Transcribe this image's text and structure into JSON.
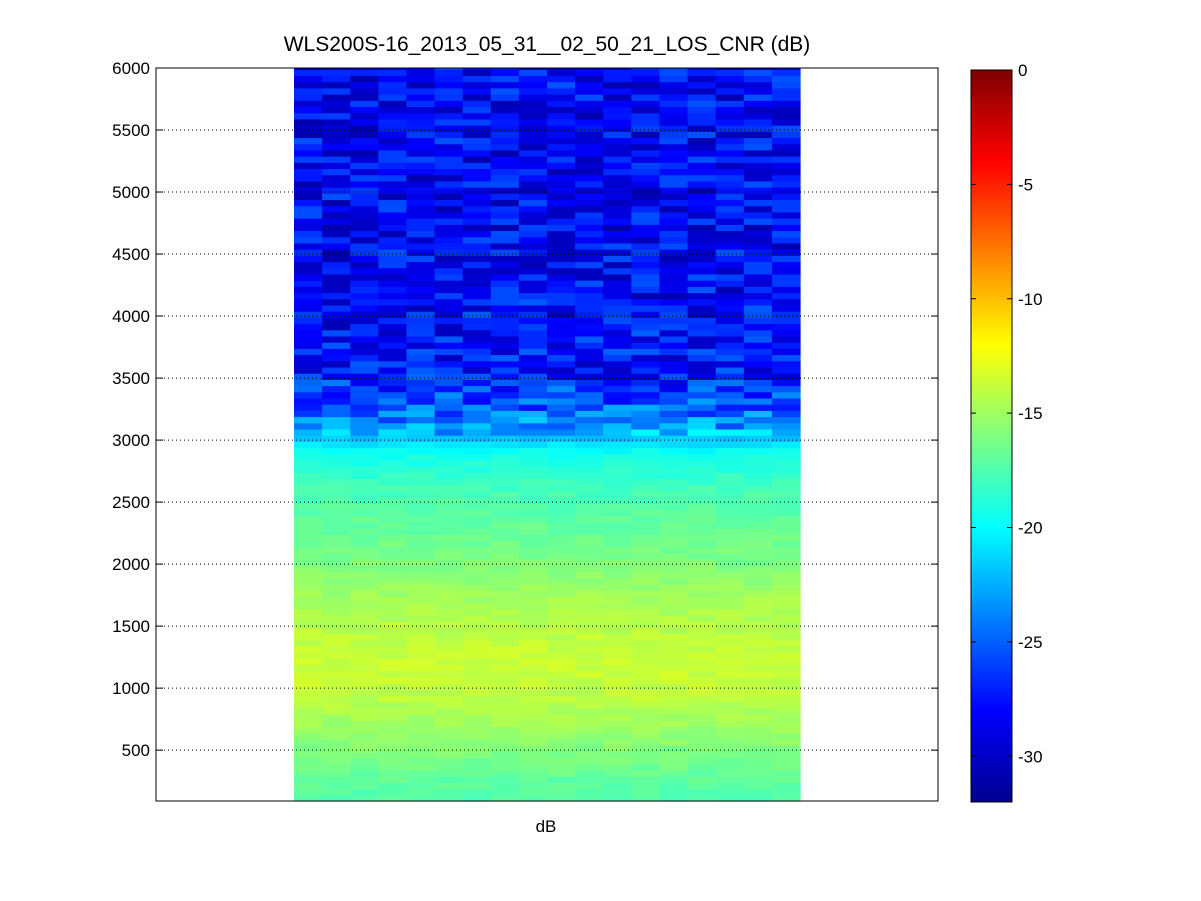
{
  "chart_data": {
    "type": "heatmap",
    "title": "WLS200S-16_2013_05_31__02_50_21_LOS_CNR (dB)",
    "xlabel": "dB",
    "ylabel": "",
    "ylim": [
      90,
      6000
    ],
    "yticks": [
      500,
      1000,
      1500,
      2000,
      2500,
      3000,
      3500,
      4000,
      4500,
      5000,
      5500,
      6000
    ],
    "grid": "horizontal dotted",
    "colormap": "jet",
    "colorbar": {
      "label": "",
      "range": [
        -32,
        0
      ],
      "ticks": [
        0,
        -5,
        -10,
        -15,
        -20,
        -25,
        -30
      ]
    },
    "columns": 18,
    "y_bin_edges": [
      90,
      2900,
      3000,
      6000
    ],
    "value_profile": [
      {
        "altitude": 100,
        "cnr": -17.5
      },
      {
        "altitude": 300,
        "cnr": -16.8
      },
      {
        "altitude": 600,
        "cnr": -15.5
      },
      {
        "altitude": 900,
        "cnr": -14.2
      },
      {
        "altitude": 1150,
        "cnr": -13.6
      },
      {
        "altitude": 1400,
        "cnr": -14.0
      },
      {
        "altitude": 1700,
        "cnr": -14.8
      },
      {
        "altitude": 2000,
        "cnr": -16.0
      },
      {
        "altitude": 2300,
        "cnr": -16.8
      },
      {
        "altitude": 2600,
        "cnr": -17.8
      },
      {
        "altitude": 2900,
        "cnr": -19.5
      },
      {
        "altitude": 3000,
        "cnr": -21.5
      },
      {
        "altitude": 3200,
        "cnr": -24.5
      },
      {
        "altitude": 3600,
        "cnr": -27.5
      },
      {
        "altitude": 4500,
        "cnr": -28.0
      },
      {
        "altitude": 6000,
        "cnr": -28.0
      }
    ]
  }
}
